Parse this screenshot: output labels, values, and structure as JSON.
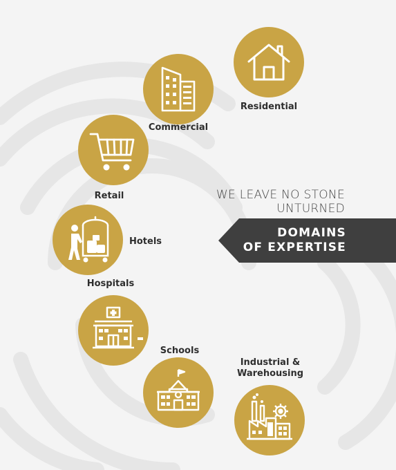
{
  "domains": {
    "residential": {
      "label": "Residential",
      "icon": "house-icon"
    },
    "commercial": {
      "label": "Commercial",
      "icon": "office-building-icon"
    },
    "retail": {
      "label": "Retail",
      "icon": "shopping-cart-icon"
    },
    "hotels": {
      "label": "Hotels",
      "icon": "luggage-trolley-icon"
    },
    "hospitals": {
      "label": "Hospitals",
      "icon": "hospital-icon"
    },
    "schools": {
      "label": "Schools",
      "icon": "school-icon"
    },
    "industrial": {
      "label_line1": "Industrial &",
      "label_line2": "Warehousing",
      "icon": "factory-icon"
    }
  },
  "tagline": {
    "line1": "WE LEAVE NO STONE",
    "line2": "UNTURNED"
  },
  "banner": {
    "line1": "DOMAINS",
    "line2": "OF EXPERTISE"
  },
  "colors": {
    "gold": "#c9a445",
    "banner": "#3f3f3f",
    "background": "#f4f4f4"
  }
}
